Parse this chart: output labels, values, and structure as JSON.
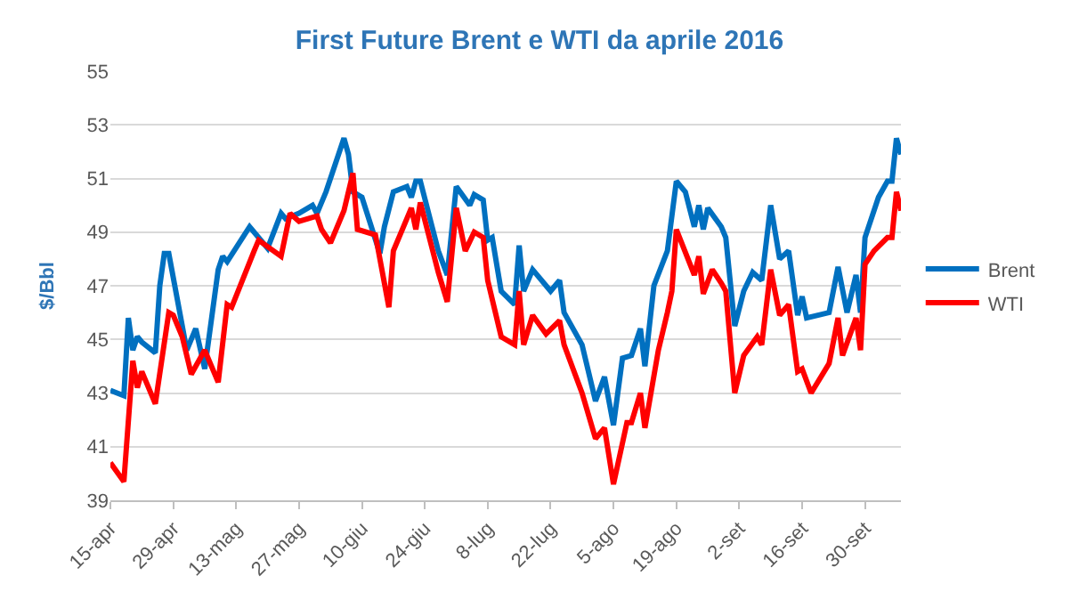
{
  "chart_data": {
    "type": "line",
    "title": "First Future Brent e WTI da aprile 2016",
    "ylabel": "$/Bbl",
    "xlim": [
      "2016-04-15",
      "2016-10-08"
    ],
    "xticks": [
      {
        "value": "2016-04-15",
        "label": "15-apr"
      },
      {
        "value": "2016-04-29",
        "label": "29-apr"
      },
      {
        "value": "2016-05-13",
        "label": "13-mag"
      },
      {
        "value": "2016-05-27",
        "label": "27-mag"
      },
      {
        "value": "2016-06-10",
        "label": "10-giu"
      },
      {
        "value": "2016-06-24",
        "label": "24-giu"
      },
      {
        "value": "2016-07-08",
        "label": "8-lug"
      },
      {
        "value": "2016-07-22",
        "label": "22-lug"
      },
      {
        "value": "2016-08-05",
        "label": "5-ago"
      },
      {
        "value": "2016-08-19",
        "label": "19-ago"
      },
      {
        "value": "2016-09-02",
        "label": "2-set"
      },
      {
        "value": "2016-09-16",
        "label": "16-set"
      },
      {
        "value": "2016-09-30",
        "label": "30-set"
      }
    ],
    "ylim": [
      39,
      55
    ],
    "yticks": [
      39,
      41,
      43,
      45,
      47,
      49,
      51,
      53,
      55
    ],
    "grid": "y",
    "legend": "right",
    "marker": "none",
    "line_style": "solid",
    "series": [
      {
        "name": "Brent",
        "color": "#0070c0",
        "x": [
          "2016-04-15",
          "2016-04-18",
          "2016-04-19",
          "2016-04-20",
          "2016-04-21",
          "2016-04-22",
          "2016-04-25",
          "2016-04-26",
          "2016-04-27",
          "2016-04-28",
          "2016-05-02",
          "2016-05-04",
          "2016-05-06",
          "2016-05-09",
          "2016-05-10",
          "2016-05-11",
          "2016-05-16",
          "2016-05-20",
          "2016-05-23",
          "2016-05-24",
          "2016-05-27",
          "2016-05-30",
          "2016-05-31",
          "2016-06-02",
          "2016-06-06",
          "2016-06-07",
          "2016-06-08",
          "2016-06-10",
          "2016-06-14",
          "2016-06-15",
          "2016-06-17",
          "2016-06-20",
          "2016-06-21",
          "2016-06-22",
          "2016-06-23",
          "2016-06-27",
          "2016-06-29",
          "2016-07-01",
          "2016-07-04",
          "2016-07-05",
          "2016-07-07",
          "2016-07-08",
          "2016-07-09",
          "2016-07-11",
          "2016-07-14",
          "2016-07-15",
          "2016-07-16",
          "2016-07-18",
          "2016-07-22",
          "2016-07-24",
          "2016-07-25",
          "2016-07-29",
          "2016-08-01",
          "2016-08-03",
          "2016-08-05",
          "2016-08-07",
          "2016-08-09",
          "2016-08-11",
          "2016-08-12",
          "2016-08-14",
          "2016-08-17",
          "2016-08-19",
          "2016-08-21",
          "2016-08-23",
          "2016-08-24",
          "2016-08-25",
          "2016-08-26",
          "2016-08-29",
          "2016-08-30",
          "2016-09-01",
          "2016-09-03",
          "2016-09-05",
          "2016-09-07",
          "2016-09-09",
          "2016-09-11",
          "2016-09-13",
          "2016-09-15",
          "2016-09-16",
          "2016-09-17",
          "2016-09-22",
          "2016-09-24",
          "2016-09-26",
          "2016-09-28",
          "2016-09-29",
          "2016-09-30",
          "2016-10-03",
          "2016-10-05",
          "2016-10-06",
          "2016-10-07",
          "2016-10-08"
        ],
        "values": [
          43.1,
          42.9,
          45.8,
          44.6,
          45.1,
          44.9,
          44.5,
          47.0,
          48.2,
          48.2,
          44.6,
          45.4,
          43.9,
          47.6,
          48.1,
          47.9,
          49.2,
          48.4,
          49.7,
          49.5,
          49.7,
          50.0,
          49.7,
          50.5,
          52.5,
          51.9,
          50.5,
          50.3,
          48.2,
          49.2,
          50.5,
          50.7,
          50.3,
          50.9,
          50.9,
          48.3,
          47.4,
          50.7,
          50.0,
          50.4,
          50.2,
          48.7,
          48.8,
          46.8,
          46.3,
          48.5,
          46.8,
          47.6,
          46.8,
          47.2,
          46.0,
          44.8,
          42.7,
          43.6,
          41.8,
          44.3,
          44.4,
          45.4,
          44.0,
          47.0,
          48.3,
          50.9,
          50.5,
          49.2,
          50.0,
          49.1,
          49.9,
          49.2,
          48.8,
          45.5,
          46.8,
          47.5,
          47.2,
          50.0,
          48.0,
          48.3,
          45.9,
          46.6,
          45.8,
          46.0,
          47.7,
          46.0,
          47.4,
          46.0,
          48.8,
          50.3,
          50.9,
          50.9,
          52.5,
          51.9
        ]
      },
      {
        "name": "WTI",
        "color": "#ff0000",
        "x": [
          "2016-04-15",
          "2016-04-18",
          "2016-04-20",
          "2016-04-21",
          "2016-04-22",
          "2016-04-25",
          "2016-04-28",
          "2016-04-29",
          "2016-05-01",
          "2016-05-03",
          "2016-05-06",
          "2016-05-09",
          "2016-05-11",
          "2016-05-12",
          "2016-05-17",
          "2016-05-18",
          "2016-05-23",
          "2016-05-25",
          "2016-05-27",
          "2016-05-31",
          "2016-06-01",
          "2016-06-03",
          "2016-06-06",
          "2016-06-08",
          "2016-06-09",
          "2016-06-13",
          "2016-06-16",
          "2016-06-17",
          "2016-06-21",
          "2016-06-22",
          "2016-06-23",
          "2016-06-27",
          "2016-06-29",
          "2016-07-01",
          "2016-07-03",
          "2016-07-05",
          "2016-07-07",
          "2016-07-08",
          "2016-07-11",
          "2016-07-14",
          "2016-07-15",
          "2016-07-16",
          "2016-07-18",
          "2016-07-21",
          "2016-07-24",
          "2016-07-25",
          "2016-07-29",
          "2016-08-01",
          "2016-08-03",
          "2016-08-05",
          "2016-08-08",
          "2016-08-09",
          "2016-08-11",
          "2016-08-12",
          "2016-08-15",
          "2016-08-17",
          "2016-08-18",
          "2016-08-19",
          "2016-08-23",
          "2016-08-24",
          "2016-08-25",
          "2016-08-27",
          "2016-08-29",
          "2016-08-30",
          "2016-09-01",
          "2016-09-03",
          "2016-09-06",
          "2016-09-07",
          "2016-09-09",
          "2016-09-11",
          "2016-09-13",
          "2016-09-15",
          "2016-09-16",
          "2016-09-18",
          "2016-09-22",
          "2016-09-24",
          "2016-09-25",
          "2016-09-28",
          "2016-09-29",
          "2016-09-30",
          "2016-10-02",
          "2016-10-05",
          "2016-10-06",
          "2016-10-07",
          "2016-10-08"
        ],
        "values": [
          40.4,
          39.7,
          44.2,
          43.2,
          43.8,
          42.6,
          46.0,
          45.9,
          45.1,
          43.7,
          44.6,
          43.4,
          46.3,
          46.2,
          48.3,
          48.7,
          48.1,
          49.7,
          49.4,
          49.6,
          49.1,
          48.6,
          49.8,
          51.2,
          49.1,
          48.9,
          46.2,
          48.3,
          49.9,
          49.1,
          50.1,
          47.5,
          46.4,
          49.9,
          48.3,
          49.0,
          48.8,
          47.2,
          45.1,
          44.8,
          46.8,
          44.8,
          45.9,
          45.2,
          45.7,
          44.8,
          43.0,
          41.3,
          41.7,
          39.6,
          41.9,
          41.9,
          43.0,
          41.7,
          44.6,
          46.0,
          46.8,
          49.1,
          47.4,
          48.1,
          46.7,
          47.6,
          47.1,
          46.8,
          43.0,
          44.4,
          45.1,
          44.8,
          47.6,
          45.9,
          46.3,
          43.8,
          43.9,
          43.0,
          44.1,
          45.8,
          44.4,
          45.8,
          44.6,
          47.8,
          48.3,
          48.8,
          48.8,
          50.5,
          49.8
        ]
      }
    ]
  }
}
